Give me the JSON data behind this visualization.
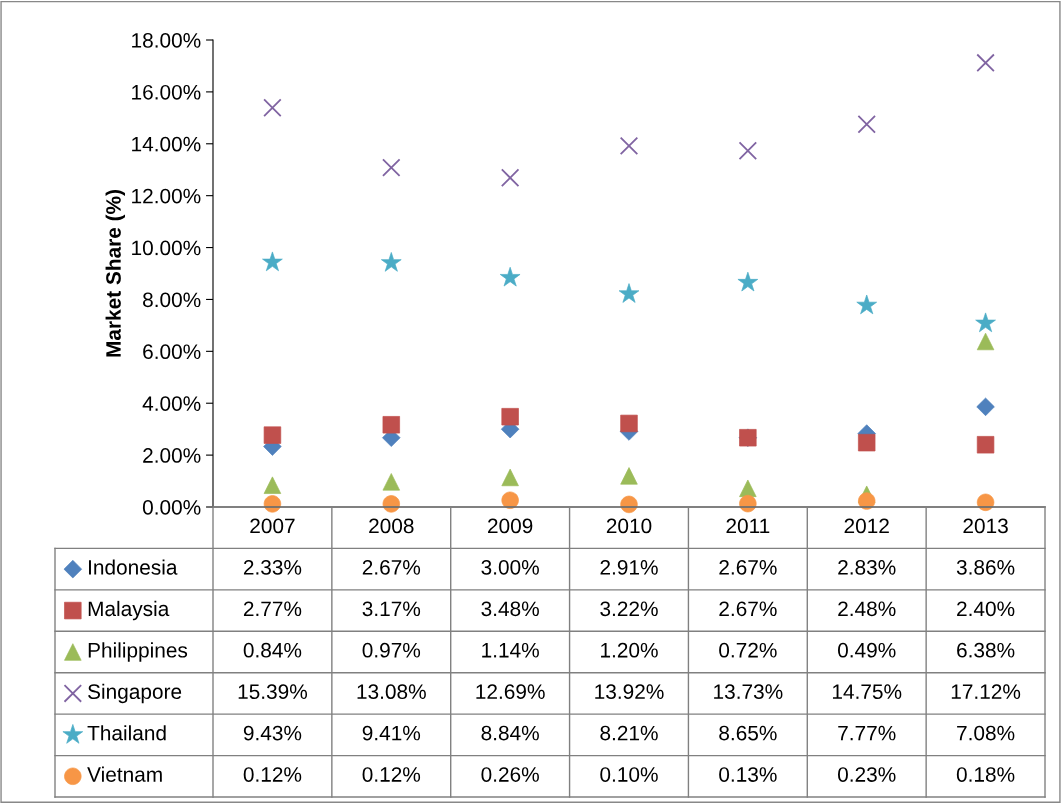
{
  "chart_data": {
    "type": "scatter",
    "ylabel": "Market Share (%)",
    "categories": [
      "2007",
      "2008",
      "2009",
      "2010",
      "2011",
      "2012",
      "2013"
    ],
    "ylim": [
      0,
      18
    ],
    "yticks": [
      {
        "value": 0,
        "label": "0.00%"
      },
      {
        "value": 2,
        "label": "2.00%"
      },
      {
        "value": 4,
        "label": "4.00%"
      },
      {
        "value": 6,
        "label": "6.00%"
      },
      {
        "value": 8,
        "label": "8.00%"
      },
      {
        "value": 10,
        "label": "10.00%"
      },
      {
        "value": 12,
        "label": "12.00%"
      },
      {
        "value": 14,
        "label": "14.00%"
      },
      {
        "value": 16,
        "label": "16.00%"
      },
      {
        "value": 18,
        "label": "18.00%"
      }
    ],
    "grid": false,
    "legend": "bottom",
    "series": [
      {
        "name": "Indonesia",
        "color": "#4f81bd",
        "marker": "diamond",
        "values": [
          2.33,
          2.67,
          3.0,
          2.91,
          2.67,
          2.83,
          3.86
        ],
        "value_labels": [
          "2.33%",
          "2.67%",
          "3.00%",
          "2.91%",
          "2.67%",
          "2.83%",
          "3.86%"
        ]
      },
      {
        "name": "Malaysia",
        "color": "#c0504d",
        "marker": "square",
        "values": [
          2.77,
          3.17,
          3.48,
          3.22,
          2.67,
          2.48,
          2.4
        ],
        "value_labels": [
          "2.77%",
          "3.17%",
          "3.48%",
          "3.22%",
          "2.67%",
          "2.48%",
          "2.40%"
        ]
      },
      {
        "name": "Philippines",
        "color": "#9bbb59",
        "marker": "triangle",
        "values": [
          0.84,
          0.97,
          1.14,
          1.2,
          0.72,
          0.49,
          6.38
        ],
        "value_labels": [
          "0.84%",
          "0.97%",
          "1.14%",
          "1.20%",
          "0.72%",
          "0.49%",
          "6.38%"
        ]
      },
      {
        "name": "Singapore",
        "color": "#8064a2",
        "marker": "cross",
        "values": [
          15.39,
          13.08,
          12.69,
          13.92,
          13.73,
          14.75,
          17.12
        ],
        "value_labels": [
          "15.39%",
          "13.08%",
          "12.69%",
          "13.92%",
          "13.73%",
          "14.75%",
          "17.12%"
        ]
      },
      {
        "name": "Thailand",
        "color": "#4bacc6",
        "marker": "star",
        "values": [
          9.43,
          9.41,
          8.84,
          8.21,
          8.65,
          7.77,
          7.08
        ],
        "value_labels": [
          "9.43%",
          "9.41%",
          "8.84%",
          "8.21%",
          "8.65%",
          "7.77%",
          "7.08%"
        ]
      },
      {
        "name": "Vietnam",
        "color": "#f79646",
        "marker": "circle",
        "values": [
          0.12,
          0.12,
          0.26,
          0.1,
          0.13,
          0.23,
          0.18
        ],
        "value_labels": [
          "0.12%",
          "0.12%",
          "0.26%",
          "0.10%",
          "0.13%",
          "0.23%",
          "0.18%"
        ]
      }
    ]
  }
}
